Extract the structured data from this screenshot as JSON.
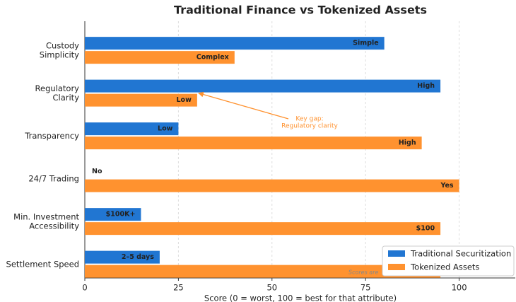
{
  "chart_data": {
    "type": "barh",
    "title": "Traditional Finance vs Tokenized Assets",
    "categories": [
      "Custody\nSimplicity",
      "Regulatory\nClarity",
      "Transparency",
      "24/7 Trading",
      "Min. Investment\nAccessibility",
      "Settlement Speed"
    ],
    "series": [
      {
        "name": "Traditional Securitization",
        "color": "#2176d2",
        "values": [
          80,
          95,
          25,
          0,
          15,
          20
        ],
        "value_labels": [
          "Simple",
          "High",
          "Low",
          "No",
          "$100K+",
          "2–5 days"
        ]
      },
      {
        "name": "Tokenized Assets",
        "color": "#ff922f",
        "values": [
          40,
          30,
          90,
          100,
          95,
          95
        ],
        "value_labels": [
          "Complex",
          "Low",
          "High",
          "Yes",
          "$100",
          null
        ]
      }
    ],
    "xlabel": "Score (0 = worst, 100 = best for that attribute)",
    "xlim": [
      0,
      115
    ],
    "xticks": [
      0,
      25,
      50,
      75,
      100
    ],
    "grid": true,
    "legend": "lower right",
    "annotation": {
      "lines": [
        "Key gap:",
        "Regulatory clarity"
      ],
      "color": "#ff922f"
    },
    "note": "Scores are"
  }
}
